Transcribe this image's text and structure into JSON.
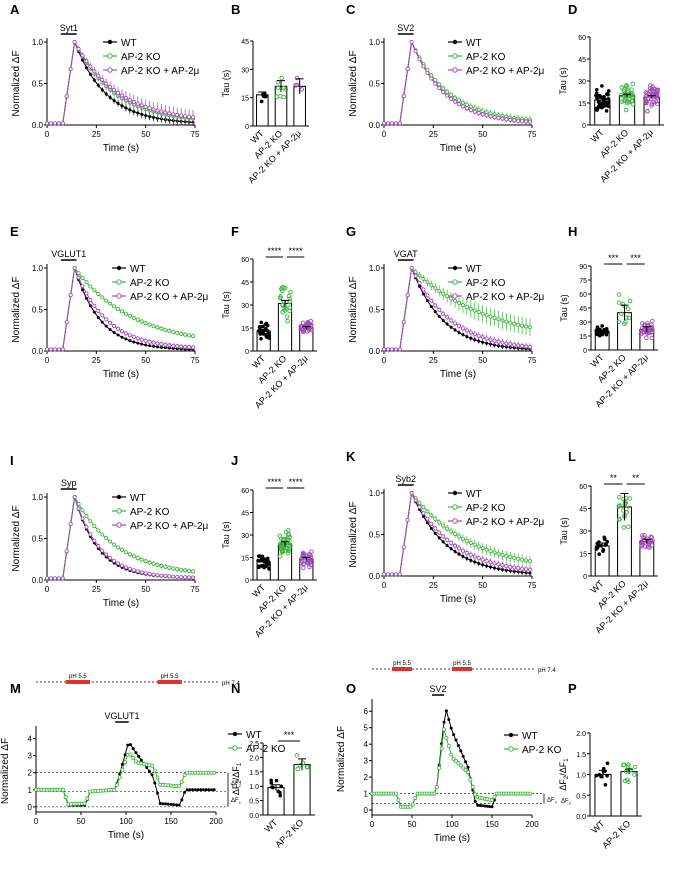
{
  "figure": {
    "colors": {
      "wt": "#000000",
      "ko": "#3db43d",
      "resc": "#a24bb8",
      "ph": "#e0312f"
    },
    "legend_text": {
      "wt": "WT",
      "ko": "AP-2 KO",
      "resc": "AP-2 KO + AP-2μ"
    },
    "panel_letters": [
      "A",
      "B",
      "C",
      "D",
      "E",
      "F",
      "G",
      "H",
      "I",
      "J",
      "K",
      "L",
      "M",
      "N",
      "O",
      "P"
    ]
  },
  "chart_data": [
    {
      "panel": "A",
      "type": "line",
      "title": "Syt1",
      "xlabel": "Time  (s)",
      "ylabel": "Normalized ΔF",
      "xlim": [
        0,
        75
      ],
      "ylim": [
        0,
        1
      ],
      "x_ticks": [
        "0",
        "25",
        "50",
        "75"
      ],
      "y_ticks": [
        "0.0",
        "0.5",
        "1.0"
      ],
      "stim_bar": [
        7,
        15
      ],
      "series": [
        {
          "name": "WT",
          "color": "#000000",
          "peak": 14,
          "base": 0.02,
          "residual": 0.01,
          "tau": 16,
          "err": 0.03
        },
        {
          "name": "AP-2 KO",
          "color": "#3db43d",
          "peak": 14,
          "base": 0.02,
          "residual": 0.03,
          "tau": 20,
          "err": 0.04
        },
        {
          "name": "AP-2 KO + AP-2μ",
          "color": "#a24bb8",
          "peak": 14,
          "base": 0.02,
          "residual": 0.03,
          "tau": 22,
          "err": 0.06
        }
      ]
    },
    {
      "panel": "B",
      "type": "bar",
      "ylabel": "Tau (s)",
      "ylim": [
        0,
        45
      ],
      "y_ticks": [
        "0",
        "15",
        "30",
        "45"
      ],
      "categories": [
        "WT",
        "AP-2 KO",
        "AP-2 KO + AP-2μ"
      ],
      "values": [
        16.5,
        21,
        21
      ],
      "errors": [
        1.5,
        3,
        4
      ],
      "n_points": [
        7,
        8,
        4
      ],
      "spread": [
        3.5,
        8,
        6
      ]
    },
    {
      "panel": "C",
      "type": "line",
      "title": "SV2",
      "xlabel": "Time  (s)",
      "ylabel": "Normalized ΔF",
      "xlim": [
        0,
        75
      ],
      "ylim": [
        0,
        1
      ],
      "x_ticks": [
        "0",
        "25",
        "50",
        "75"
      ],
      "y_ticks": [
        "0.0",
        "0.5",
        "1.0"
      ],
      "stim_bar": [
        7,
        15
      ],
      "series": [
        {
          "name": "WT",
          "color": "#000000",
          "peak": 14,
          "base": 0.02,
          "residual": 0.01,
          "tau": 17,
          "err": 0.02
        },
        {
          "name": "AP-2 KO",
          "color": "#3db43d",
          "peak": 14,
          "base": 0.02,
          "residual": 0.02,
          "tau": 19,
          "err": 0.03
        },
        {
          "name": "AP-2 KO + AP-2μ",
          "color": "#a24bb8",
          "peak": 14,
          "base": 0.02,
          "residual": 0.01,
          "tau": 17,
          "err": 0.02
        }
      ]
    },
    {
      "panel": "D",
      "type": "bar",
      "ylabel": "Tau (s)",
      "ylim": [
        0,
        60
      ],
      "y_ticks": [
        "0",
        "15",
        "30",
        "45",
        "60"
      ],
      "categories": [
        "WT",
        "AP-2 KO",
        "AP-2 KO + AP-2μ"
      ],
      "values": [
        17,
        20,
        19
      ],
      "errors": [
        1,
        1,
        1
      ],
      "n_points": [
        40,
        35,
        45
      ],
      "spread": [
        9,
        10,
        10
      ]
    },
    {
      "panel": "E",
      "type": "line",
      "title": "VGLUT1",
      "xlabel": "Time  (s)",
      "ylabel": "Normalized ΔF",
      "xlim": [
        0,
        75
      ],
      "ylim": [
        0,
        1
      ],
      "x_ticks": [
        "0",
        "25",
        "50",
        "75"
      ],
      "y_ticks": [
        "0.0",
        "0.5",
        "1.0"
      ],
      "stim_bar": [
        7,
        15
      ],
      "series": [
        {
          "name": "WT",
          "color": "#000000",
          "peak": 14,
          "base": 0.02,
          "residual": 0.01,
          "tau": 13,
          "err": 0.01
        },
        {
          "name": "AP-2 KO",
          "color": "#3db43d",
          "peak": 14,
          "base": 0.02,
          "residual": 0.05,
          "tau": 30,
          "err": 0.02
        },
        {
          "name": "AP-2 KO + AP-2μ",
          "color": "#a24bb8",
          "peak": 14,
          "base": 0.02,
          "residual": 0.02,
          "tau": 16,
          "err": 0.02
        }
      ]
    },
    {
      "panel": "F",
      "type": "bar",
      "ylabel": "Tau (s)",
      "ylim": [
        0,
        60
      ],
      "y_ticks": [
        "0",
        "15",
        "30",
        "45",
        "60"
      ],
      "categories": [
        "WT",
        "AP-2 KO",
        "AP-2 KO + AP-2μ"
      ],
      "values": [
        13,
        31,
        15
      ],
      "errors": [
        1,
        2,
        1
      ],
      "n_points": [
        30,
        25,
        28
      ],
      "spread": [
        6,
        14,
        5
      ],
      "significance": [
        {
          "from": 0,
          "to": 1,
          "label": "****"
        },
        {
          "from": 1,
          "to": 2,
          "label": "****"
        }
      ]
    },
    {
      "panel": "G",
      "type": "line",
      "title": "VGAT",
      "xlabel": "Time  (s)",
      "ylabel": "Normalized ΔF",
      "xlim": [
        0,
        75
      ],
      "ylim": [
        0,
        1
      ],
      "x_ticks": [
        "0",
        "25",
        "50",
        "75"
      ],
      "y_ticks": [
        "0.0",
        "0.5",
        "1.0"
      ],
      "stim_bar": [
        7,
        15
      ],
      "series": [
        {
          "name": "WT",
          "color": "#000000",
          "peak": 14,
          "base": 0.02,
          "residual": 0.0,
          "tau": 16,
          "err": 0.02
        },
        {
          "name": "AP-2 KO",
          "color": "#3db43d",
          "peak": 14,
          "base": 0.02,
          "residual": 0.1,
          "tau": 38,
          "err": 0.07
        },
        {
          "name": "AP-2 KO + AP-2μ",
          "color": "#a24bb8",
          "peak": 14,
          "base": 0.02,
          "residual": 0.0,
          "tau": 20,
          "err": 0.03
        }
      ]
    },
    {
      "panel": "H",
      "type": "bar",
      "ylabel": "Tau (s)",
      "ylim": [
        0,
        90
      ],
      "y_ticks": [
        "0",
        "15",
        "30",
        "45",
        "60",
        "75",
        "90"
      ],
      "categories": [
        "WT",
        "AP-2 KO",
        "AP-2 KO + AP-2μ"
      ],
      "values": [
        20,
        40,
        22
      ],
      "errors": [
        1,
        8,
        3
      ],
      "n_points": [
        40,
        12,
        35
      ],
      "spread": [
        5,
        25,
        10
      ],
      "significance": [
        {
          "from": 0,
          "to": 1,
          "label": "***"
        },
        {
          "from": 1,
          "to": 2,
          "label": "***"
        }
      ]
    },
    {
      "panel": "I",
      "type": "line",
      "title": "Syp",
      "xlabel": "Time  (s)",
      "ylabel": "Normalized ΔF",
      "xlim": [
        0,
        75
      ],
      "ylim": [
        0,
        1
      ],
      "x_ticks": [
        "0",
        "25",
        "50",
        "75"
      ],
      "y_ticks": [
        "0.0",
        "0.5",
        "1.0"
      ],
      "stim_bar": [
        7,
        15
      ],
      "series": [
        {
          "name": "WT",
          "color": "#000000",
          "peak": 14,
          "base": 0.02,
          "residual": 0.02,
          "tau": 12,
          "err": 0.01
        },
        {
          "name": "AP-2 KO",
          "color": "#3db43d",
          "peak": 14,
          "base": 0.02,
          "residual": 0.04,
          "tau": 22,
          "err": 0.02
        },
        {
          "name": "AP-2 KO + AP-2μ",
          "color": "#a24bb8",
          "peak": 14,
          "base": 0.02,
          "residual": 0.02,
          "tau": 13,
          "err": 0.01
        }
      ]
    },
    {
      "panel": "J",
      "type": "bar",
      "ylabel": "Tau (s)",
      "ylim": [
        0,
        60
      ],
      "y_ticks": [
        "0",
        "15",
        "30",
        "45",
        "60"
      ],
      "categories": [
        "WT",
        "AP-2 KO",
        "AP-2 KO + AP-2μ"
      ],
      "values": [
        12,
        24,
        14
      ],
      "errors": [
        1,
        1.5,
        1
      ],
      "n_points": [
        30,
        40,
        35
      ],
      "spread": [
        5,
        12,
        7
      ],
      "significance": [
        {
          "from": 0,
          "to": 1,
          "label": "****"
        },
        {
          "from": 1,
          "to": 2,
          "label": "****"
        }
      ]
    },
    {
      "panel": "K",
      "type": "line",
      "title": "Syb2",
      "xlabel": "Time  (s)",
      "ylabel": "Normalized ΔF",
      "xlim": [
        0,
        75
      ],
      "ylim": [
        0,
        1
      ],
      "x_ticks": [
        "0",
        "25",
        "50",
        "75"
      ],
      "y_ticks": [
        "0.0",
        "0.5",
        "1.0"
      ],
      "stim_bar": [
        7,
        15
      ],
      "series": [
        {
          "name": "WT",
          "color": "#000000",
          "peak": 14,
          "base": 0.02,
          "residual": 0.0,
          "tau": 18,
          "err": 0.02
        },
        {
          "name": "AP-2 KO",
          "color": "#3db43d",
          "peak": 14,
          "base": 0.02,
          "residual": 0.05,
          "tau": 30,
          "err": 0.04
        },
        {
          "name": "AP-2 KO + AP-2μ",
          "color": "#a24bb8",
          "peak": 14,
          "base": 0.02,
          "residual": 0.02,
          "tau": 21,
          "err": 0.03
        }
      ]
    },
    {
      "panel": "L",
      "type": "bar",
      "ylabel": "Tau (s)",
      "ylim": [
        0,
        60
      ],
      "y_ticks": [
        "0",
        "15",
        "30",
        "45",
        "60"
      ],
      "categories": [
        "WT",
        "AP-2 KO",
        "AP-2 KO + AP-2μ"
      ],
      "values": [
        20,
        46,
        23
      ],
      "errors": [
        2,
        9,
        1.5
      ],
      "n_points": [
        15,
        20,
        30
      ],
      "spread": [
        6,
        14,
        6
      ],
      "significance": [
        {
          "from": 0,
          "to": 1,
          "label": "**"
        },
        {
          "from": 1,
          "to": 2,
          "label": "**"
        }
      ]
    },
    {
      "panel": "M",
      "type": "line",
      "title": "VGLUT1",
      "xlabel": "Time  (s)",
      "ylabel": "Normalized ΔF",
      "xlim": [
        0,
        200
      ],
      "ylim": [
        -0.3,
        4.5
      ],
      "x_ticks": [
        "0",
        "50",
        "100",
        "150",
        "200"
      ],
      "y_ticks": [
        "0",
        "1",
        "2",
        "3",
        "4"
      ],
      "stim_bar": [
        88,
        103
      ],
      "ph_bars": [
        [
          33,
          60
        ],
        [
          135,
          162
        ]
      ],
      "ph_label": "pH 5.5",
      "ph_baseline_label": "pH 7.4",
      "ref_lines": [
        2,
        0.9,
        0
      ],
      "delta_labels": [
        "ΔF2",
        "ΔF1"
      ],
      "series": [
        {
          "name": "WT",
          "color": "#000000",
          "points": [
            [
              0,
              1
            ],
            [
              30,
              1
            ],
            [
              36,
              0.1
            ],
            [
              55,
              0.1
            ],
            [
              60,
              0.9
            ],
            [
              88,
              1
            ],
            [
              103,
              3.8
            ],
            [
              112,
              3.1
            ],
            [
              130,
              1.8
            ],
            [
              138,
              0.2
            ],
            [
              160,
              0.1
            ],
            [
              166,
              1
            ],
            [
              200,
              1
            ]
          ]
        },
        {
          "name": "AP-2 KO",
          "color": "#3db43d",
          "points": [
            [
              0,
              1
            ],
            [
              30,
              1
            ],
            [
              36,
              0.15
            ],
            [
              55,
              0.2
            ],
            [
              60,
              0.9
            ],
            [
              88,
              1
            ],
            [
              103,
              3.2
            ],
            [
              112,
              2.6
            ],
            [
              130,
              2.4
            ],
            [
              138,
              1.3
            ],
            [
              160,
              1.2
            ],
            [
              166,
              2
            ],
            [
              200,
              2
            ]
          ]
        }
      ]
    },
    {
      "panel": "N",
      "type": "bar",
      "ylabel": "ΔF2/ΔF1",
      "ylim": [
        0,
        2.5
      ],
      "y_ticks": [
        "0.0",
        "0.5",
        "1.0",
        "1.5",
        "2.0",
        "2.5"
      ],
      "categories": [
        "WT",
        "AP-2 KO"
      ],
      "values": [
        0.95,
        1.75
      ],
      "errors": [
        0.1,
        0.2
      ],
      "n_points": [
        9,
        6
      ],
      "spread": [
        0.4,
        0.5
      ],
      "significance": [
        {
          "from": 0,
          "to": 1,
          "label": "***"
        }
      ]
    },
    {
      "panel": "O",
      "type": "line",
      "title": "SV2",
      "xlabel": "Time  (s)",
      "ylabel": "Normalized ΔF",
      "xlim": [
        0,
        200
      ],
      "ylim": [
        -0.3,
        6.5
      ],
      "x_ticks": [
        "0",
        "50",
        "100",
        "150",
        "200"
      ],
      "y_ticks": [
        "0",
        "1",
        "2",
        "3",
        "4",
        "5",
        "6"
      ],
      "stim_bar": [
        75,
        90
      ],
      "ph_bars": [
        [
          25,
          50
        ],
        [
          100,
          125
        ]
      ],
      "ph_label": "pH 5.5",
      "ph_baseline_label": "pH 7.4",
      "ref_lines": [
        1,
        0.4
      ],
      "delta_labels": [
        "ΔF1",
        "ΔF2"
      ],
      "series": [
        {
          "name": "WT",
          "color": "#000000",
          "points": [
            [
              0,
              1
            ],
            [
              30,
              1
            ],
            [
              36,
              0.2
            ],
            [
              50,
              0.2
            ],
            [
              56,
              1
            ],
            [
              80,
              1
            ],
            [
              92,
              6.2
            ],
            [
              100,
              4.8
            ],
            [
              120,
              2.6
            ],
            [
              130,
              0.3
            ],
            [
              150,
              0.2
            ],
            [
              156,
              1
            ],
            [
              200,
              1
            ]
          ]
        },
        {
          "name": "AP-2 KO",
          "color": "#3db43d",
          "points": [
            [
              0,
              1
            ],
            [
              30,
              1
            ],
            [
              36,
              0.2
            ],
            [
              50,
              0.2
            ],
            [
              56,
              1
            ],
            [
              80,
              1
            ],
            [
              90,
              4.9
            ],
            [
              100,
              3.2
            ],
            [
              120,
              2.3
            ],
            [
              130,
              0.8
            ],
            [
              150,
              0.6
            ],
            [
              156,
              1
            ],
            [
              200,
              1
            ]
          ]
        }
      ]
    },
    {
      "panel": "P",
      "type": "bar",
      "ylabel": "ΔF2/ΔF1",
      "ylim": [
        0,
        2
      ],
      "y_ticks": [
        "0.0",
        "0.5",
        "1.0",
        "1.5",
        "2.0"
      ],
      "categories": [
        "WT",
        "AP-2 KO"
      ],
      "values": [
        1.0,
        1.07
      ],
      "errors": [
        0.1,
        0.06
      ],
      "n_points": [
        9,
        12
      ],
      "spread": [
        0.4,
        0.3
      ]
    }
  ]
}
